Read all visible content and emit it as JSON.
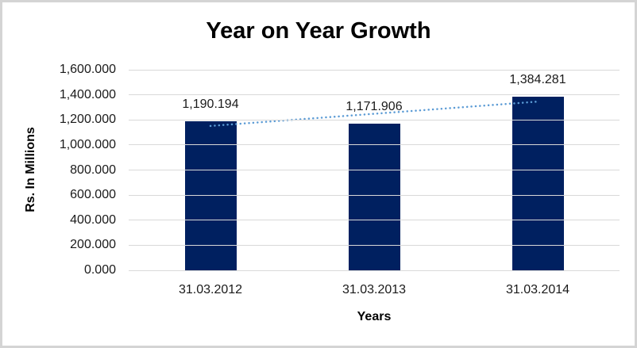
{
  "chart": {
    "title": "Year on Year Growth",
    "colors": {
      "bar": "#002060",
      "trendline": "#5b9bd5",
      "gridline": "#d9d9d9",
      "frame_border": "#d4d4d4",
      "text": "#1a1a1a",
      "title_text": "#000000"
    }
  },
  "chart_data": {
    "type": "bar",
    "title": "Year on Year Growth",
    "xlabel": "Years",
    "ylabel": "Rs. In Millions",
    "categories": [
      "31.03.2012",
      "31.03.2013",
      "31.03.2014"
    ],
    "values": [
      1190.194,
      1171.906,
      1384.281
    ],
    "data_labels": [
      "1,190.194",
      "1,171.906",
      "1,384.281"
    ],
    "y_ticks": [
      "1,600.000",
      "1,400.000",
      "1,200.000",
      "1,000.000",
      "800.000",
      "600.000",
      "400.000",
      "200.000",
      "0.000"
    ],
    "ylim": [
      0,
      1600
    ],
    "grid": true,
    "legend": false,
    "trendline": {
      "type": "linear",
      "style": "dotted",
      "endpoint_values": [
        1151.75,
        1345.83
      ]
    }
  }
}
